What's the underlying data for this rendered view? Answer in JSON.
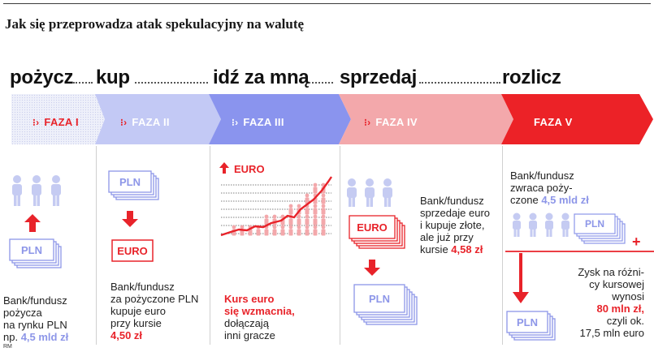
{
  "title": "Jak się przeprowadza atak spekulacyjny na walutę",
  "steps": [
    {
      "verb": "pożycz",
      "phase": "FAZA I"
    },
    {
      "verb": "kup",
      "phase": "FAZA II"
    },
    {
      "verb": "idź za mną",
      "phase": "FAZA III"
    },
    {
      "verb": "sprzedaj",
      "phase": "FAZA IV"
    },
    {
      "verb": "rozlicz",
      "phase": "FAZA V"
    }
  ],
  "phase1": {
    "note_label": "PLN",
    "text_line1": "Bank/fundusz",
    "text_line2": "pożycza",
    "text_line3": "na rynku PLN",
    "text_line4_prefix": "np. ",
    "amount": "4,5 mld zł"
  },
  "phase2": {
    "note_top": "PLN",
    "note_bottom": "EURO",
    "text_line1": "Bank/fundusz",
    "text_line2": "za pożyczone PLN",
    "text_line3": "kupuje euro",
    "text_line4": "przy kursie",
    "rate": "4,50 zł"
  },
  "phase3": {
    "chart_label": "EURO",
    "text_line1": "Kurs euro",
    "text_line2": "się wzmacnia,",
    "text_line3": "dołączają",
    "text_line4": "inni gracze"
  },
  "phase4": {
    "note_top": "EURO",
    "note_bottom": "PLN",
    "text_line1": "Bank/fundusz",
    "text_line2": "sprzedaje euro",
    "text_line3": "i kupuje złote,",
    "text_line4": "ale już przy",
    "text_line5_prefix": "kursie ",
    "rate": "4,58 zł"
  },
  "phase5": {
    "top_line1": "Bank/fundusz",
    "top_line2": "zwraca poży-",
    "top_line3_prefix": "czone ",
    "top_amount": "4,5 mld zł",
    "note_top": "PLN",
    "note_bottom": "PLN",
    "plus_sign": "+",
    "text_line1": "Zysk na różni-",
    "text_line2": "cy kursowej",
    "text_line3": "wynosi",
    "profit": "80 mln zł,",
    "text_line5": "czyli ok.",
    "text_line6": "17,5 mln euro"
  },
  "footer": "RM",
  "colors": {
    "phase1": "#e9ebf7",
    "phase2": "#c3c9f5",
    "phase3": "#8a94ee",
    "phase4": "#f3a8ab",
    "phase5": "#ec2227",
    "blue_accent": "#8d96e8",
    "red_accent": "#e8232a",
    "people": "#c5cbf2"
  }
}
